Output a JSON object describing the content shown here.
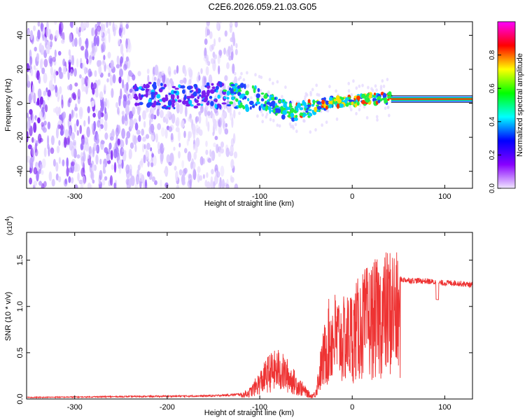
{
  "page": {
    "title": "C2E6.2026.059.21.03.G05"
  },
  "chart_data": [
    {
      "type": "heatmap",
      "xlabel": "Height of straight line (km)",
      "ylabel": "Frequency (Hz)",
      "xlim": [
        -352,
        130
      ],
      "ylim": [
        -50,
        48
      ],
      "x_ticks": [
        -300,
        -200,
        -100,
        0,
        100
      ],
      "y_ticks": [
        -40,
        -20,
        0,
        20,
        40
      ],
      "colorbar": {
        "label": "Normalized spectral amplitude",
        "range": [
          0.0,
          1.0
        ],
        "ticks": [
          0.0,
          0.2,
          0.4,
          0.6,
          0.8
        ],
        "colors": [
          "#f0e6ff",
          "#8800ff",
          "#0000ff",
          "#00ffff",
          "#00ff00",
          "#ffff00",
          "#ff0000",
          "#ff00ff"
        ]
      },
      "track": [
        {
          "x": -230,
          "f": 6
        },
        {
          "x": -200,
          "f": 4
        },
        {
          "x": -170,
          "f": 4
        },
        {
          "x": -140,
          "f": 5
        },
        {
          "x": -120,
          "f": 4
        },
        {
          "x": -100,
          "f": 2
        },
        {
          "x": -90,
          "f": 0
        },
        {
          "x": -80,
          "f": -2
        },
        {
          "x": -70,
          "f": -4
        },
        {
          "x": -60,
          "f": -5
        },
        {
          "x": -50,
          "f": -4
        },
        {
          "x": -40,
          "f": -2
        },
        {
          "x": -30,
          "f": 0
        },
        {
          "x": -20,
          "f": 1
        },
        {
          "x": -10,
          "f": 1
        },
        {
          "x": 0,
          "f": 2
        },
        {
          "x": 10,
          "f": 2
        },
        {
          "x": 20,
          "f": 3
        },
        {
          "x": 30,
          "f": 3
        },
        {
          "x": 40,
          "f": 3
        }
      ],
      "horizontal_band": {
        "x_start": 42,
        "x_end": 130,
        "f_center": 2.5
      }
    },
    {
      "type": "line",
      "xlabel": "Height of straight line (km)",
      "ylabel": "SNR (10 * v/v)",
      "y_scale_label": "(x10",
      "y_scale_exp": "4",
      "y_scale_close": ")",
      "xlim": [
        -352,
        130
      ],
      "ylim": [
        0,
        1.8
      ],
      "x_ticks": [
        -300,
        -200,
        -100,
        0,
        100
      ],
      "y_ticks": [
        "0.0",
        "0.5",
        "1.0",
        "1.5"
      ],
      "series": [
        {
          "color": "#ee3333",
          "envelope": [
            [
              -352,
              0.02
            ],
            [
              -250,
              0.03
            ],
            [
              -150,
              0.04
            ],
            [
              -120,
              0.06
            ],
            [
              -110,
              0.12
            ],
            [
              -100,
              0.28
            ],
            [
              -90,
              0.45
            ],
            [
              -80,
              0.5
            ],
            [
              -70,
              0.4
            ],
            [
              -60,
              0.25
            ],
            [
              -50,
              0.12
            ],
            [
              -45,
              0.05
            ],
            [
              -40,
              0.08
            ],
            [
              -35,
              0.45
            ],
            [
              -30,
              0.75
            ],
            [
              -25,
              1.0
            ],
            [
              -20,
              1.08
            ],
            [
              -10,
              1.0
            ],
            [
              0,
              1.1
            ],
            [
              10,
              1.25
            ],
            [
              20,
              1.35
            ],
            [
              30,
              1.4
            ],
            [
              40,
              1.5
            ],
            [
              45,
              1.55
            ],
            [
              52,
              1.3
            ],
            [
              60,
              1.29
            ],
            [
              80,
              1.28
            ],
            [
              95,
              1.26
            ],
            [
              110,
              1.26
            ],
            [
              130,
              1.24
            ]
          ]
        }
      ]
    }
  ]
}
